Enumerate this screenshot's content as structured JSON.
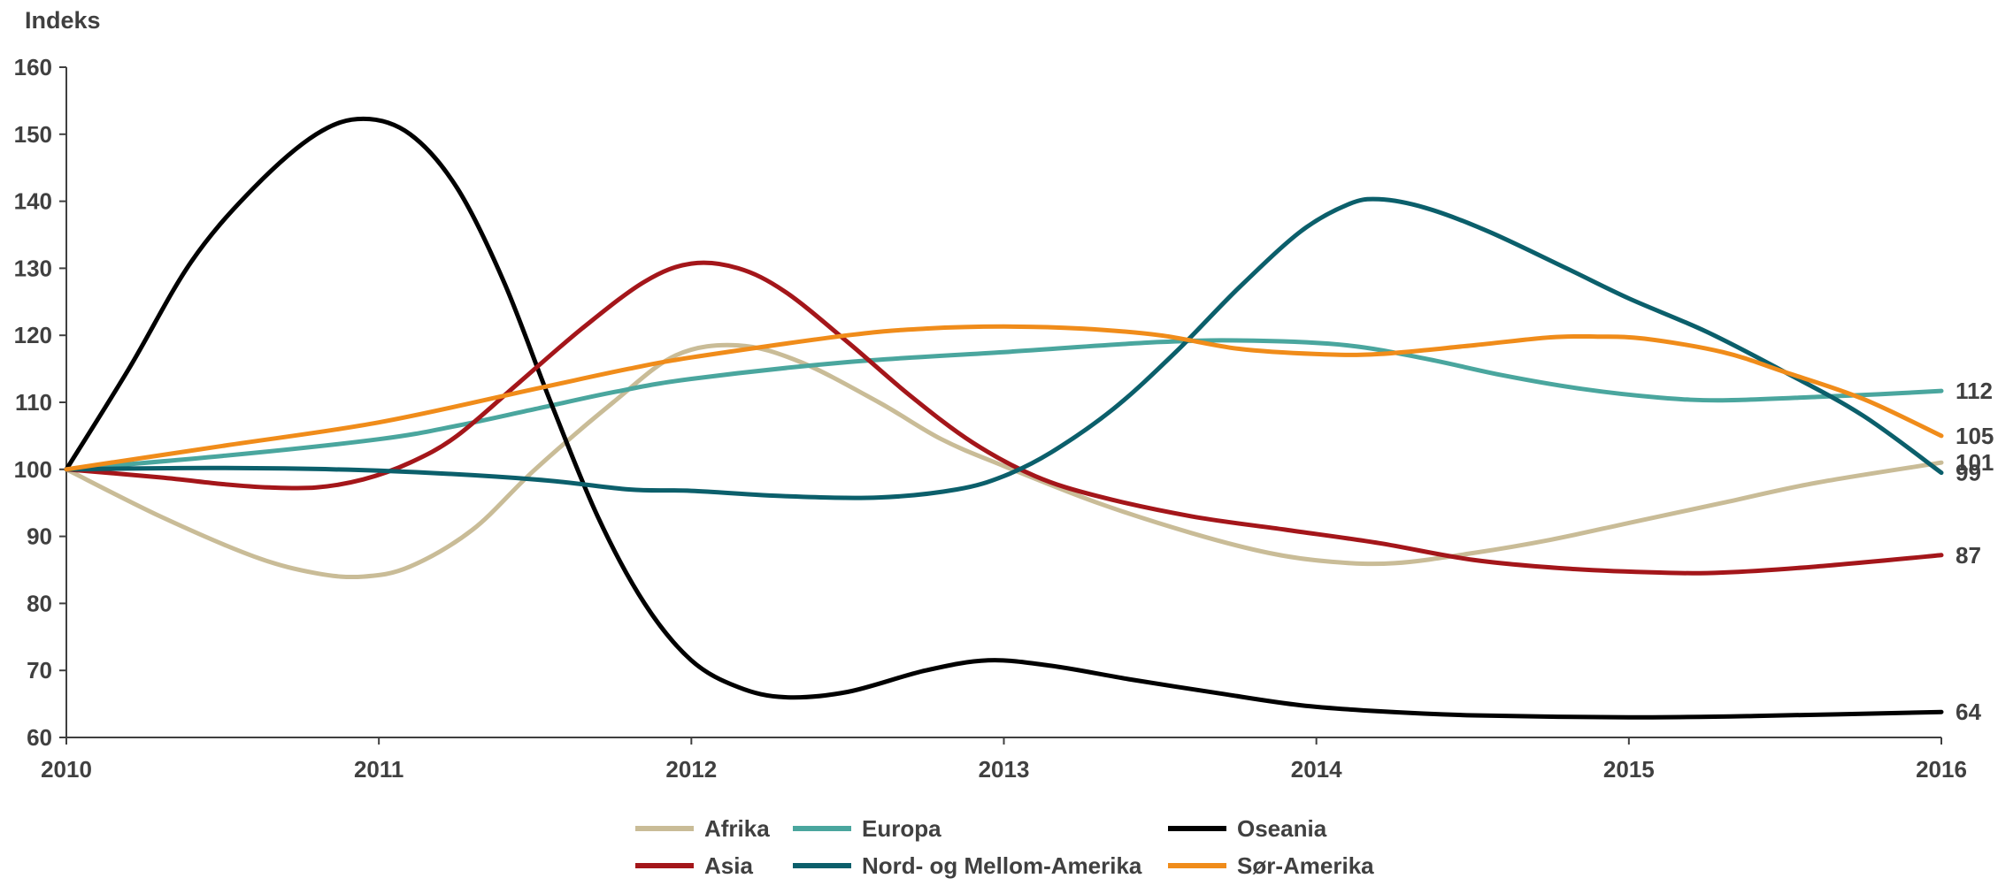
{
  "chart_data": {
    "type": "line",
    "ylabel": "Indeks",
    "xlim": [
      2010,
      2016
    ],
    "ylim": [
      60,
      160
    ],
    "x_ticks": [
      "2010",
      "2011",
      "2012",
      "2013",
      "2014",
      "2015",
      "2016"
    ],
    "y_ticks": [
      "60",
      "70",
      "80",
      "90",
      "100",
      "110",
      "120",
      "130",
      "140",
      "150",
      "160"
    ],
    "grid": false,
    "legend_position": "bottom",
    "series": [
      {
        "name": "Afrika",
        "color": "#c9bc97",
        "end_label": "101",
        "points": [
          [
            2010,
            100
          ],
          [
            2010.3,
            93
          ],
          [
            2010.6,
            87
          ],
          [
            2010.8,
            84.5
          ],
          [
            2010.95,
            84
          ],
          [
            2011.1,
            85.5
          ],
          [
            2011.3,
            91
          ],
          [
            2011.5,
            100
          ],
          [
            2011.75,
            110
          ],
          [
            2011.95,
            117
          ],
          [
            2012.15,
            118.5
          ],
          [
            2012.35,
            116
          ],
          [
            2012.6,
            110
          ],
          [
            2012.8,
            104.5
          ],
          [
            2013,
            100.5
          ],
          [
            2013.3,
            95
          ],
          [
            2013.6,
            90.5
          ],
          [
            2013.85,
            87.5
          ],
          [
            2014.05,
            86.2
          ],
          [
            2014.25,
            86
          ],
          [
            2014.5,
            87.5
          ],
          [
            2014.75,
            89.5
          ],
          [
            2015,
            92
          ],
          [
            2015.3,
            95
          ],
          [
            2015.6,
            98
          ],
          [
            2016,
            101
          ]
        ]
      },
      {
        "name": "Europa",
        "color": "#4aa69e",
        "end_label": "112",
        "points": [
          [
            2010,
            100
          ],
          [
            2010.5,
            102
          ],
          [
            2011,
            104.5
          ],
          [
            2011.25,
            106.5
          ],
          [
            2011.5,
            109
          ],
          [
            2011.75,
            111.5
          ],
          [
            2012,
            113.5
          ],
          [
            2012.5,
            116
          ],
          [
            2013,
            117.5
          ],
          [
            2013.5,
            119
          ],
          [
            2013.8,
            119.2
          ],
          [
            2014.1,
            118.5
          ],
          [
            2014.35,
            116.5
          ],
          [
            2014.6,
            114
          ],
          [
            2014.85,
            112
          ],
          [
            2015.1,
            110.7
          ],
          [
            2015.3,
            110.3
          ],
          [
            2015.6,
            110.8
          ],
          [
            2015.8,
            111.2
          ],
          [
            2016,
            111.7
          ]
        ]
      },
      {
        "name": "Oseania",
        "color": "#000000",
        "end_label": "64",
        "points": [
          [
            2010,
            100
          ],
          [
            2010.2,
            115
          ],
          [
            2010.4,
            131
          ],
          [
            2010.6,
            142
          ],
          [
            2010.8,
            150
          ],
          [
            2010.95,
            152.3
          ],
          [
            2011.1,
            150
          ],
          [
            2011.25,
            142
          ],
          [
            2011.4,
            128
          ],
          [
            2011.55,
            110
          ],
          [
            2011.7,
            93
          ],
          [
            2011.85,
            80
          ],
          [
            2012,
            71.5
          ],
          [
            2012.15,
            67.5
          ],
          [
            2012.3,
            66
          ],
          [
            2012.5,
            66.8
          ],
          [
            2012.75,
            70
          ],
          [
            2012.95,
            71.5
          ],
          [
            2013.15,
            70.7
          ],
          [
            2013.4,
            68.7
          ],
          [
            2013.7,
            66.5
          ],
          [
            2013.95,
            64.8
          ],
          [
            2014.2,
            63.9
          ],
          [
            2014.5,
            63.3
          ],
          [
            2015,
            63
          ],
          [
            2015.4,
            63.2
          ],
          [
            2016,
            63.8
          ]
        ]
      },
      {
        "name": "Asia",
        "color": "#a4161a",
        "end_label": "87",
        "points": [
          [
            2010,
            100
          ],
          [
            2010.3,
            98.8
          ],
          [
            2010.5,
            97.8
          ],
          [
            2010.65,
            97.3
          ],
          [
            2010.8,
            97.3
          ],
          [
            2010.95,
            98.5
          ],
          [
            2011.1,
            101
          ],
          [
            2011.25,
            105
          ],
          [
            2011.45,
            113
          ],
          [
            2011.65,
            121
          ],
          [
            2011.85,
            128
          ],
          [
            2012,
            130.7
          ],
          [
            2012.15,
            130
          ],
          [
            2012.3,
            126.5
          ],
          [
            2012.5,
            119
          ],
          [
            2012.7,
            111
          ],
          [
            2012.9,
            104
          ],
          [
            2013.1,
            99
          ],
          [
            2013.3,
            96
          ],
          [
            2013.6,
            93
          ],
          [
            2013.9,
            91
          ],
          [
            2014.2,
            89
          ],
          [
            2014.5,
            86.5
          ],
          [
            2014.8,
            85.2
          ],
          [
            2015.1,
            84.6
          ],
          [
            2015.3,
            84.6
          ],
          [
            2015.6,
            85.5
          ],
          [
            2016,
            87.2
          ]
        ]
      },
      {
        "name": "Nord- og Mellom-Amerika",
        "color": "#0b5f6b",
        "end_label": "99",
        "points": [
          [
            2010,
            100
          ],
          [
            2010.5,
            100.2
          ],
          [
            2011,
            99.8
          ],
          [
            2011.5,
            98.5
          ],
          [
            2011.8,
            97
          ],
          [
            2012,
            96.8
          ],
          [
            2012.3,
            96
          ],
          [
            2012.6,
            95.8
          ],
          [
            2012.85,
            97
          ],
          [
            2013,
            99
          ],
          [
            2013.15,
            102.5
          ],
          [
            2013.35,
            109
          ],
          [
            2013.55,
            117.5
          ],
          [
            2013.75,
            127
          ],
          [
            2013.95,
            135.5
          ],
          [
            2014.1,
            139.5
          ],
          [
            2014.2,
            140.3
          ],
          [
            2014.35,
            139
          ],
          [
            2014.55,
            135.5
          ],
          [
            2014.8,
            130
          ],
          [
            2015,
            125.5
          ],
          [
            2015.25,
            120.5
          ],
          [
            2015.5,
            114.5
          ],
          [
            2015.75,
            108
          ],
          [
            2016,
            99.5
          ]
        ]
      },
      {
        "name": "Sør-Amerika",
        "color": "#f08c1a",
        "end_label": "105",
        "points": [
          [
            2010,
            100
          ],
          [
            2010.5,
            103.5
          ],
          [
            2011,
            107
          ],
          [
            2011.5,
            112
          ],
          [
            2011.8,
            115
          ],
          [
            2012,
            116.7
          ],
          [
            2012.5,
            120
          ],
          [
            2012.75,
            121
          ],
          [
            2013,
            121.3
          ],
          [
            2013.25,
            121
          ],
          [
            2013.5,
            120
          ],
          [
            2013.75,
            118
          ],
          [
            2014,
            117.2
          ],
          [
            2014.2,
            117.2
          ],
          [
            2014.5,
            118.5
          ],
          [
            2014.75,
            119.7
          ],
          [
            2014.9,
            119.8
          ],
          [
            2015.05,
            119.5
          ],
          [
            2015.3,
            117.5
          ],
          [
            2015.5,
            114.5
          ],
          [
            2015.75,
            110.5
          ],
          [
            2016,
            105
          ]
        ]
      }
    ]
  }
}
